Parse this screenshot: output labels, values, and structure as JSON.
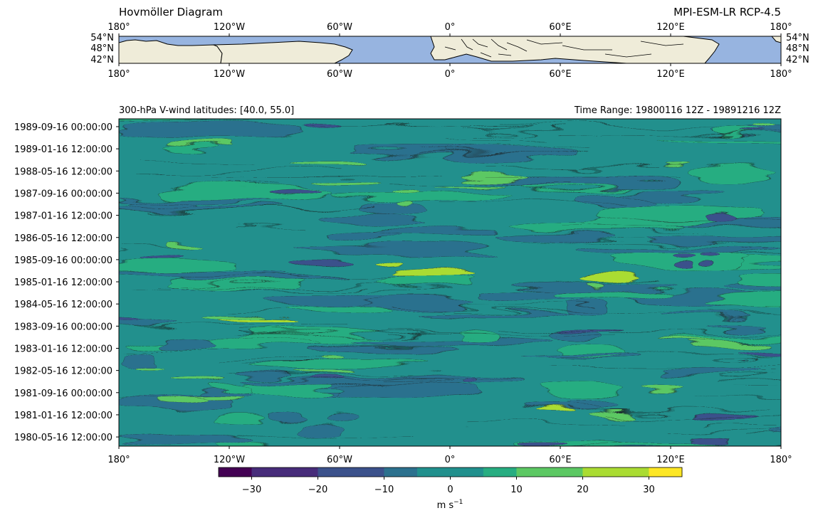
{
  "header": {
    "title": "Hovmöller Diagram",
    "model": "MPI-ESM-LR RCP-4.5"
  },
  "map_panel": {
    "lon_ticks": [
      "180°",
      "120°W",
      "60°W",
      "0°",
      "60°E",
      "120°E",
      "180°"
    ],
    "lat_ticks": [
      "54°N",
      "48°N",
      "42°N"
    ],
    "ocean_color": "#97b4e0",
    "land_color": "#efecd9"
  },
  "main_panel": {
    "left_title": "300-hPa V-wind   latitudes: [40.0, 55.0]",
    "right_title": "Time Range: 19800116 12Z - 19891216 12Z"
  },
  "chart_data": {
    "type": "heatmap",
    "title": "300-hPa V-wind   latitudes: [40.0, 55.0]",
    "x_ticks": [
      "180°",
      "120°W",
      "60°W",
      "0°",
      "60°E",
      "120°E",
      "180°"
    ],
    "xlim": [
      -180,
      180
    ],
    "y_ticks": [
      "1989-09-16 00:00:00",
      "1989-01-16 12:00:00",
      "1988-05-16 12:00:00",
      "1987-09-16 00:00:00",
      "1987-01-16 12:00:00",
      "1986-05-16 12:00:00",
      "1985-09-16 00:00:00",
      "1985-01-16 12:00:00",
      "1984-05-16 12:00:00",
      "1983-09-16 00:00:00",
      "1983-01-16 12:00:00",
      "1982-05-16 12:00:00",
      "1981-09-16 00:00:00",
      "1981-01-16 12:00:00",
      "1980-05-16 12:00:00"
    ],
    "ylim": [
      "19800116 12Z",
      "19891216 12Z"
    ],
    "colorbar": {
      "levels": [
        -35,
        -30,
        -25,
        -20,
        -15,
        -10,
        -5,
        0,
        5,
        10,
        15,
        20,
        25,
        30,
        35
      ],
      "tick_values": [
        -30,
        -20,
        -10,
        0,
        10,
        20,
        30
      ],
      "tick_labels": [
        "−30",
        "−20",
        "−10",
        "0",
        "10",
        "20",
        "30"
      ],
      "colors": [
        "#440154",
        "#472c7a",
        "#3b518b",
        "#2c718e",
        "#21908d",
        "#27ad81",
        "#5cc863",
        "#aadc32",
        "#fde725"
      ],
      "label": "m s",
      "label_exp": "−1"
    }
  }
}
